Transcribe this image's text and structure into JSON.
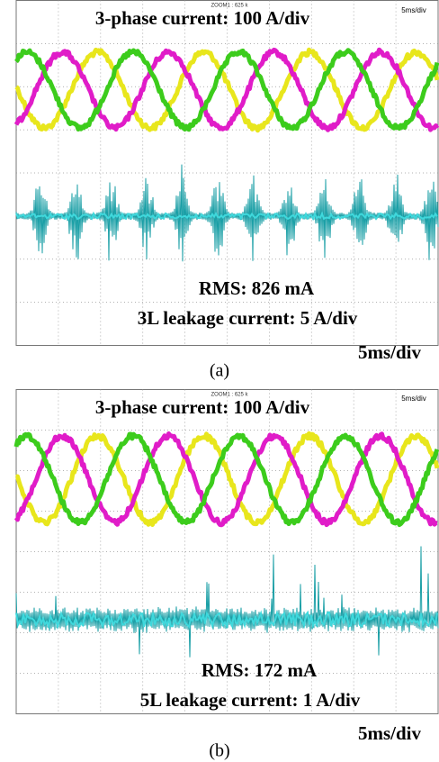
{
  "panels": [
    {
      "zoom": "ZOOM1 : 625 k",
      "timebase": "5ms/div",
      "phase_label": "3-phase current: 100 A/div",
      "rms": "RMS: 826 mA",
      "leakage_label": "3L leakage current: 5 A/div",
      "timebase_caption": "5ms/div",
      "caption": "(a)"
    },
    {
      "zoom": "ZOOM1 : 625 k",
      "timebase": "5ms/div",
      "phase_label": "3-phase current: 100 A/div",
      "rms": "RMS: 172 mA",
      "leakage_label": "5L leakage current: 1 A/div",
      "timebase_caption": "5ms/div",
      "caption": "(b)"
    }
  ]
}
